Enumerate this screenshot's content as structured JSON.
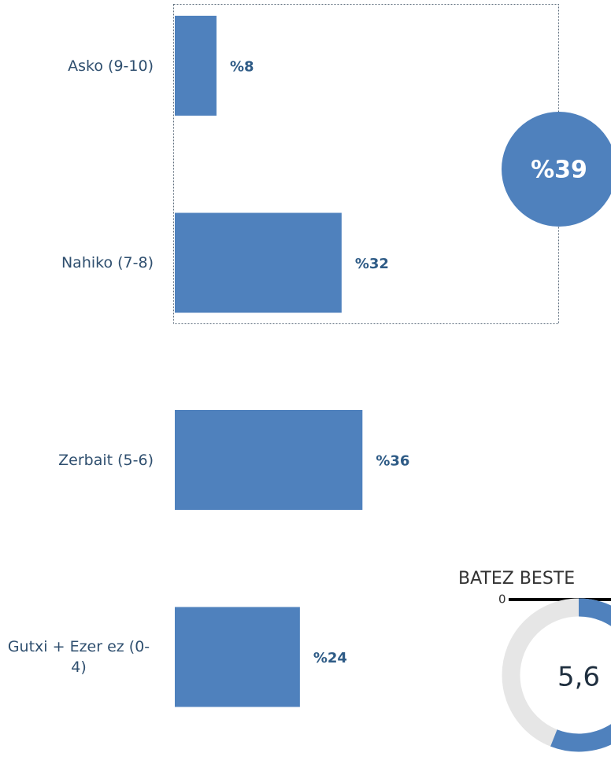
{
  "chart_data": {
    "type": "bar",
    "orientation": "horizontal",
    "categories": [
      "Asko (9-10)",
      "Nahiko (7-8)",
      "Zerbait (5-6)",
      "Gutxi + Ezer ez (0-4)"
    ],
    "values": [
      8,
      32,
      36,
      24
    ],
    "value_labels": [
      "%8",
      "%32",
      "%36",
      "%24"
    ],
    "color": "#4f81bd",
    "highlight": {
      "value": 39,
      "label": "%39"
    },
    "gauge": {
      "title": "BATEZ BESTE",
      "min": 0,
      "lim": [
        0,
        10
      ],
      "value": 5.6,
      "label": "5,6"
    }
  }
}
